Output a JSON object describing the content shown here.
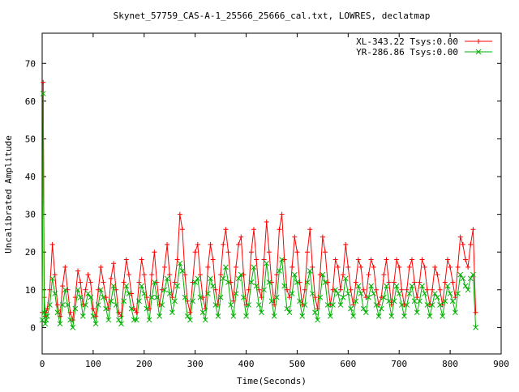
{
  "chart_data": {
    "type": "line",
    "title": "Skynet_57759_CAS-A-1_25566_25666_cal.txt, LOWRES, declatmap",
    "xlabel": "Time(Seconds)",
    "ylabel": "Uncalibrated Amplitude",
    "xlim": [
      0,
      900
    ],
    "ylim": [
      -7,
      78
    ],
    "xticks": [
      0,
      100,
      200,
      300,
      400,
      500,
      600,
      700,
      800,
      900
    ],
    "yticks": [
      0,
      10,
      20,
      30,
      40,
      50,
      60,
      70
    ],
    "grid": false,
    "legend_position": "top-right",
    "series": [
      {
        "name": "XL-343.22 Tsys:0.00",
        "color": "#ff0000",
        "marker": "plus",
        "x": [
          0,
          2,
          4,
          6,
          8,
          10,
          15,
          20,
          25,
          30,
          35,
          40,
          45,
          50,
          55,
          60,
          65,
          70,
          75,
          80,
          85,
          90,
          95,
          100,
          105,
          110,
          115,
          120,
          125,
          130,
          135,
          140,
          145,
          150,
          155,
          160,
          165,
          170,
          175,
          180,
          185,
          190,
          195,
          200,
          205,
          210,
          215,
          220,
          225,
          230,
          235,
          240,
          245,
          250,
          255,
          260,
          265,
          270,
          275,
          280,
          285,
          290,
          295,
          300,
          305,
          310,
          315,
          320,
          325,
          330,
          335,
          340,
          345,
          350,
          355,
          360,
          365,
          370,
          375,
          380,
          385,
          390,
          395,
          400,
          405,
          410,
          415,
          420,
          425,
          430,
          435,
          440,
          445,
          450,
          455,
          460,
          465,
          470,
          475,
          480,
          485,
          490,
          495,
          500,
          505,
          510,
          515,
          520,
          525,
          530,
          535,
          540,
          545,
          550,
          555,
          560,
          565,
          570,
          575,
          580,
          585,
          590,
          595,
          600,
          605,
          610,
          615,
          620,
          625,
          630,
          635,
          640,
          645,
          650,
          655,
          660,
          665,
          670,
          675,
          680,
          685,
          690,
          695,
          700,
          705,
          710,
          715,
          720,
          725,
          730,
          735,
          740,
          745,
          750,
          755,
          760,
          765,
          770,
          775,
          780,
          785,
          790,
          795,
          800,
          805,
          810,
          815,
          820,
          825,
          830,
          835,
          840,
          845,
          850
        ],
        "y": [
          4,
          65,
          8,
          3,
          4,
          5,
          10,
          22,
          14,
          6,
          3,
          11,
          16,
          10,
          4,
          2,
          8,
          15,
          12,
          6,
          10,
          14,
          12,
          5,
          3,
          10,
          16,
          12,
          8,
          5,
          13,
          17,
          10,
          4,
          3,
          12,
          18,
          14,
          9,
          5,
          4,
          12,
          18,
          14,
          8,
          5,
          14,
          20,
          12,
          6,
          10,
          16,
          22,
          14,
          8,
          12,
          18,
          30,
          26,
          14,
          7,
          4,
          12,
          20,
          22,
          14,
          8,
          5,
          16,
          22,
          18,
          10,
          6,
          14,
          22,
          26,
          20,
          12,
          7,
          16,
          22,
          24,
          14,
          6,
          10,
          20,
          26,
          18,
          10,
          8,
          18,
          28,
          20,
          12,
          6,
          14,
          26,
          30,
          18,
          10,
          8,
          16,
          24,
          20,
          12,
          6,
          10,
          20,
          26,
          16,
          8,
          5,
          14,
          24,
          20,
          12,
          6,
          10,
          18,
          16,
          10,
          14,
          22,
          16,
          10,
          6,
          12,
          18,
          16,
          10,
          8,
          14,
          18,
          16,
          10,
          6,
          8,
          14,
          18,
          12,
          6,
          12,
          18,
          16,
          10,
          6,
          10,
          16,
          18,
          12,
          8,
          12,
          18,
          16,
          10,
          6,
          10,
          16,
          14,
          10,
          6,
          12,
          18,
          16,
          12,
          8,
          16,
          24,
          22,
          18,
          16,
          22,
          26,
          4
        ]
      },
      {
        "name": "YR-286.86 Tsys:0.00",
        "color": "#00b000",
        "marker": "cross",
        "x": [
          0,
          2,
          4,
          6,
          8,
          10,
          15,
          20,
          25,
          30,
          35,
          40,
          45,
          50,
          55,
          60,
          65,
          70,
          75,
          80,
          85,
          90,
          95,
          100,
          105,
          110,
          115,
          120,
          125,
          130,
          135,
          140,
          145,
          150,
          155,
          160,
          165,
          170,
          175,
          180,
          185,
          190,
          195,
          200,
          205,
          210,
          215,
          220,
          225,
          230,
          235,
          240,
          245,
          250,
          255,
          260,
          265,
          270,
          275,
          280,
          285,
          290,
          295,
          300,
          305,
          310,
          315,
          320,
          325,
          330,
          335,
          340,
          345,
          350,
          355,
          360,
          365,
          370,
          375,
          380,
          385,
          390,
          395,
          400,
          405,
          410,
          415,
          420,
          425,
          430,
          435,
          440,
          445,
          450,
          455,
          460,
          465,
          470,
          475,
          480,
          485,
          490,
          495,
          500,
          505,
          510,
          515,
          520,
          525,
          530,
          535,
          540,
          545,
          550,
          555,
          560,
          565,
          570,
          575,
          580,
          585,
          590,
          595,
          600,
          605,
          610,
          615,
          620,
          625,
          630,
          635,
          640,
          645,
          650,
          655,
          660,
          665,
          670,
          675,
          680,
          685,
          690,
          695,
          700,
          705,
          710,
          715,
          720,
          725,
          730,
          735,
          740,
          745,
          750,
          755,
          760,
          765,
          770,
          775,
          780,
          785,
          790,
          795,
          800,
          805,
          810,
          815,
          820,
          825,
          830,
          835,
          840,
          845,
          850
        ],
        "y": [
          2,
          62,
          4,
          1,
          2,
          3,
          6,
          13,
          9,
          4,
          1,
          6,
          10,
          6,
          2,
          0,
          5,
          10,
          8,
          3,
          6,
          9,
          8,
          3,
          1,
          6,
          10,
          8,
          5,
          2,
          7,
          11,
          6,
          2,
          1,
          7,
          11,
          9,
          5,
          2,
          2,
          7,
          11,
          9,
          5,
          2,
          8,
          12,
          8,
          3,
          6,
          10,
          13,
          9,
          4,
          7,
          11,
          17,
          15,
          8,
          3,
          2,
          7,
          12,
          13,
          8,
          4,
          2,
          9,
          13,
          11,
          6,
          3,
          8,
          13,
          16,
          12,
          6,
          3,
          9,
          13,
          14,
          8,
          3,
          6,
          12,
          16,
          11,
          6,
          4,
          10,
          17,
          12,
          7,
          3,
          8,
          15,
          18,
          11,
          5,
          4,
          9,
          14,
          12,
          7,
          3,
          6,
          12,
          15,
          9,
          4,
          2,
          8,
          14,
          12,
          6,
          3,
          6,
          10,
          9,
          6,
          8,
          13,
          9,
          5,
          3,
          7,
          11,
          9,
          5,
          4,
          8,
          11,
          9,
          6,
          3,
          5,
          8,
          11,
          7,
          3,
          7,
          11,
          9,
          6,
          3,
          6,
          9,
          11,
          7,
          4,
          7,
          11,
          9,
          6,
          3,
          6,
          9,
          8,
          6,
          3,
          7,
          11,
          9,
          7,
          4,
          9,
          14,
          13,
          11,
          10,
          13,
          14,
          0
        ]
      }
    ]
  }
}
